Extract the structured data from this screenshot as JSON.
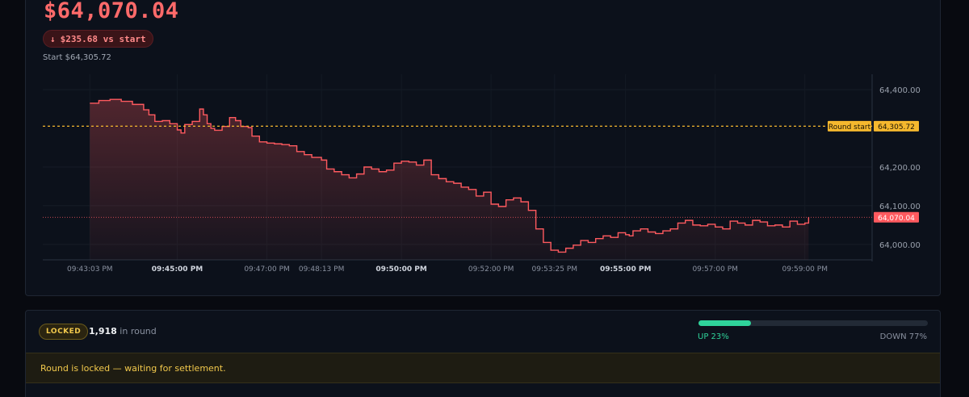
{
  "header": {
    "current_price": "$64,070.04",
    "delta_arrow": "↓",
    "delta_text": "$235.68 vs start",
    "start_text": "Start $64,305.72"
  },
  "colors": {
    "down": "#ff5a5f",
    "up": "#2fd39a",
    "accent": "#f5b82e",
    "background": "#0c111b"
  },
  "chart_data": {
    "type": "line",
    "title": "",
    "xlabel": "",
    "ylabel": "",
    "ylim": [
      63960,
      64440
    ],
    "y_ticks": [
      "64,400.00",
      "64,200.00",
      "64,100.00",
      "64,000.00"
    ],
    "y_tick_values": [
      64400,
      64200,
      64100,
      64000
    ],
    "x_ticks": [
      {
        "label": "09:43:03 PM",
        "bold": false
      },
      {
        "label": "09:45:00 PM",
        "bold": true
      },
      {
        "label": "09:47:00 PM",
        "bold": false
      },
      {
        "label": "09:48:13 PM",
        "bold": false
      },
      {
        "label": "09:50:00 PM",
        "bold": true
      },
      {
        "label": "09:52:00 PM",
        "bold": false
      },
      {
        "label": "09:53:25 PM",
        "bold": false
      },
      {
        "label": "09:55:00 PM",
        "bold": true
      },
      {
        "label": "09:57:00 PM",
        "bold": false
      },
      {
        "label": "09:59:00 PM",
        "bold": false
      }
    ],
    "x_tick_seconds": [
      183,
      300,
      420,
      493,
      600,
      720,
      805,
      900,
      1020,
      1140
    ],
    "xlim_seconds": [
      120,
      1230
    ],
    "round_start_label": "Round start",
    "round_start_value": 64305.72,
    "round_start_value_text": "64,305.72",
    "current_value": 64070.04,
    "current_value_text": "64,070.04",
    "series": [
      {
        "x_seconds": [
          183,
          195,
          210,
          225,
          240,
          255,
          262,
          270,
          280,
          290,
          300,
          305,
          310,
          320,
          330,
          335,
          340,
          345,
          350,
          360,
          370,
          378,
          385,
          395,
          400,
          410,
          420,
          430,
          440,
          450,
          460,
          470,
          480,
          493,
          500,
          510,
          520,
          530,
          540,
          550,
          560,
          570,
          580,
          590,
          600,
          610,
          620,
          630,
          640,
          650,
          660,
          670,
          680,
          690,
          700,
          710,
          720,
          730,
          740,
          750,
          760,
          770,
          780,
          790,
          800,
          810,
          820,
          830,
          840,
          850,
          860,
          870,
          880,
          890,
          900,
          905,
          910,
          920,
          930,
          940,
          950,
          960,
          970,
          980,
          990,
          1000,
          1010,
          1020,
          1030,
          1040,
          1050,
          1060,
          1070,
          1080,
          1090,
          1100,
          1110,
          1120,
          1130,
          1140,
          1145
        ],
        "y": [
          64365,
          64372,
          64375,
          64370,
          64362,
          64348,
          64335,
          64318,
          64320,
          64312,
          64296,
          64288,
          64310,
          64318,
          64350,
          64335,
          64312,
          64300,
          64295,
          64305,
          64328,
          64320,
          64305,
          64302,
          64280,
          64265,
          64262,
          64260,
          64258,
          64255,
          64240,
          64232,
          64225,
          64218,
          64195,
          64188,
          64180,
          64172,
          64182,
          64200,
          64195,
          64188,
          64192,
          64210,
          64215,
          64213,
          64205,
          64218,
          64180,
          64170,
          64162,
          64158,
          64148,
          64142,
          64125,
          64135,
          64104,
          64098,
          64115,
          64120,
          64110,
          64088,
          64040,
          64005,
          63985,
          63980,
          63990,
          63998,
          64010,
          64005,
          64015,
          64022,
          64018,
          64030,
          64025,
          64022,
          64035,
          64040,
          64032,
          64028,
          64035,
          64040,
          64055,
          64062,
          64050,
          64048,
          64052,
          64045,
          64040,
          64060,
          64055,
          64050,
          64062,
          64058,
          64048,
          64050,
          64045,
          64060,
          64052,
          64055,
          64070
        ]
      }
    ]
  },
  "round": {
    "status_badge": "LOCKED",
    "player_count": "1,918",
    "player_suffix": "in round",
    "up_label": "UP 23%",
    "down_label": "DOWN 77%",
    "up_fraction": 0.23,
    "notice": "Round is locked — waiting for settlement."
  }
}
